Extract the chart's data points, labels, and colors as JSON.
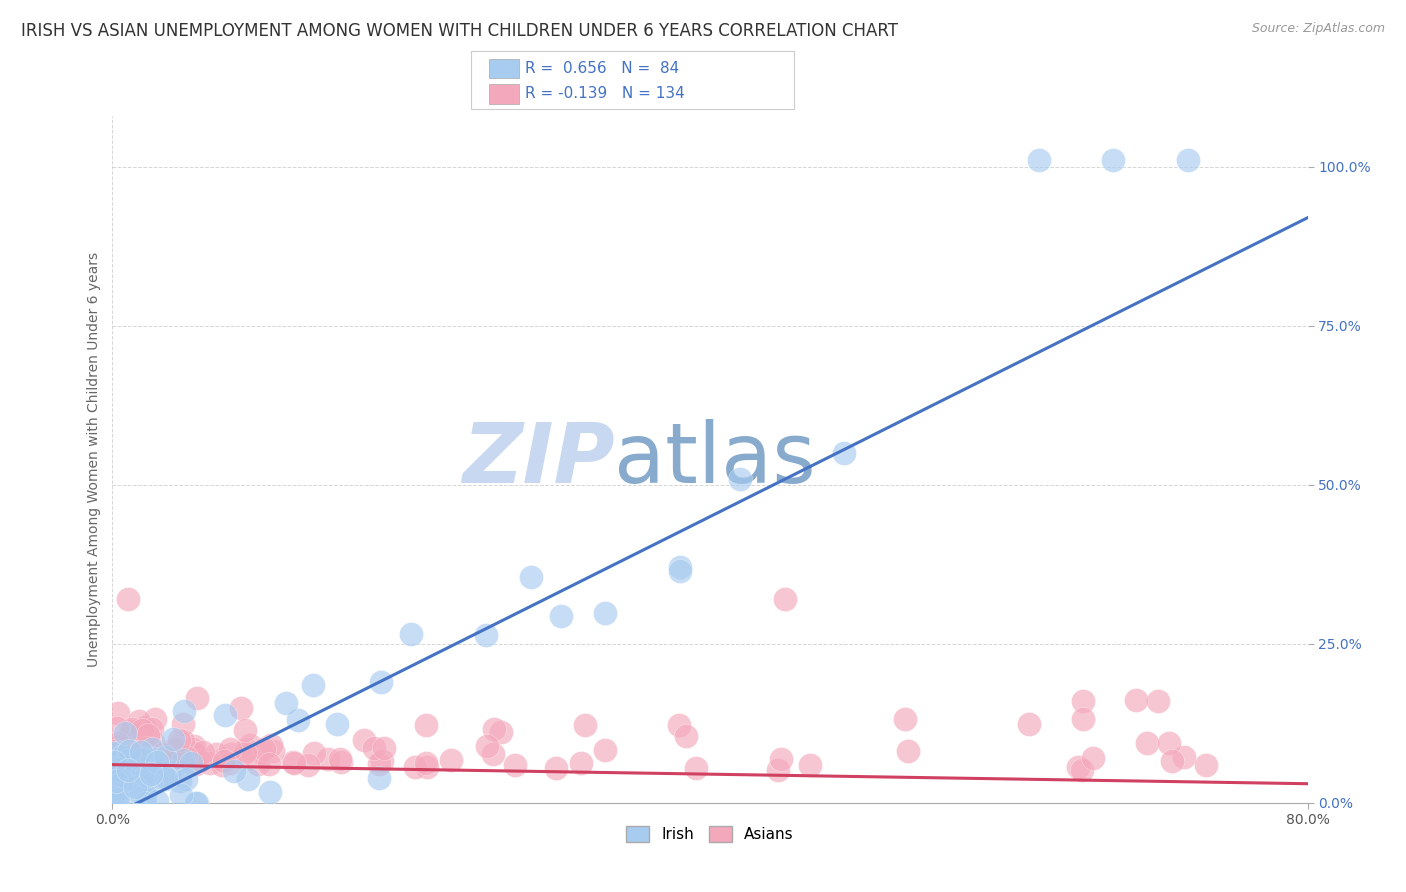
{
  "title": "IRISH VS ASIAN UNEMPLOYMENT AMONG WOMEN WITH CHILDREN UNDER 6 YEARS CORRELATION CHART",
  "source": "Source: ZipAtlas.com",
  "ylabel": "Unemployment Among Women with Children Under 6 years",
  "xlim": [
    0.0,
    0.8
  ],
  "ylim": [
    0.0,
    1.08
  ],
  "irish_R": 0.656,
  "irish_N": 84,
  "asian_R": -0.139,
  "asian_N": 134,
  "irish_color": "#A8CCF0",
  "asian_color": "#F4A8BC",
  "irish_line_color": "#4472C4",
  "asian_line_color": "#D04060",
  "legend_text_color": "#4472C4",
  "watermark_zip": "ZIP",
  "watermark_atlas": "atlas",
  "watermark_color_zip": "#C0D4F0",
  "watermark_color_atlas": "#88AACC",
  "background_color": "#FFFFFF",
  "grid_color": "#CCCCCC",
  "title_fontsize": 12,
  "axis_label_fontsize": 10,
  "tick_fontsize": 10,
  "right_tick_color": "#4472C4",
  "bottom_tick_color": "#555555"
}
